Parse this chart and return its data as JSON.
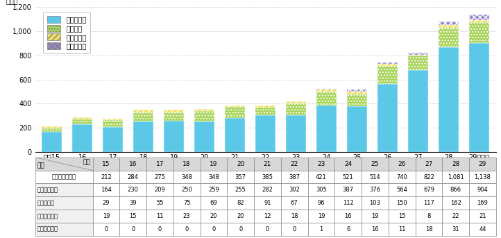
{
  "years": [
    15,
    16,
    17,
    18,
    19,
    20,
    21,
    22,
    23,
    24,
    25,
    26,
    27,
    28,
    29
  ],
  "year_labels": [
    "平成15",
    "16",
    "17",
    "18",
    "19",
    "20",
    "21",
    "22",
    "23",
    "24",
    "25",
    "26",
    "27",
    "28",
    "29（年）"
  ],
  "shintai": [
    164,
    230,
    209,
    250,
    259,
    255,
    282,
    302,
    305,
    387,
    376,
    564,
    679,
    866,
    904
  ],
  "seiteki": [
    29,
    39,
    55,
    75,
    69,
    82,
    91,
    67,
    96,
    112,
    103,
    150,
    117,
    162,
    169
  ],
  "taiman": [
    19,
    15,
    11,
    23,
    20,
    20,
    12,
    18,
    19,
    16,
    19,
    15,
    8,
    22,
    21
  ],
  "shinri": [
    0,
    0,
    0,
    0,
    0,
    0,
    0,
    0,
    1,
    6,
    16,
    11,
    18,
    31,
    44
  ],
  "total": [
    212,
    284,
    275,
    348,
    348,
    357,
    385,
    387,
    421,
    521,
    514,
    740,
    822,
    1081,
    1138
  ],
  "color_shintai": "#5bc8e8",
  "color_seiteki": "#a8d45a",
  "color_taiman": "#f0e060",
  "color_shinri": "#9988cc",
  "ylim": [
    0,
    1200
  ],
  "yticks": [
    0,
    200,
    400,
    600,
    800,
    1000,
    1200
  ],
  "ylabel": "（件）",
  "legend_labels": [
    "身体的虐待",
    "性的虐待",
    "怠慢・拒否",
    "心理的虐待"
  ],
  "table_header_years": [
    "15",
    "16",
    "17",
    "18",
    "19",
    "20",
    "21",
    "22",
    "23",
    "24",
    "25",
    "26",
    "27",
    "28",
    "29"
  ],
  "table_data_total": [
    212,
    284,
    275,
    348,
    348,
    357,
    385,
    387,
    421,
    521,
    514,
    740,
    822,
    1081,
    1138
  ],
  "table_data_shintai": [
    164,
    230,
    209,
    250,
    259,
    255,
    282,
    302,
    305,
    387,
    376,
    564,
    679,
    866,
    904
  ],
  "table_data_seiteki": [
    29,
    39,
    55,
    75,
    69,
    82,
    91,
    67,
    96,
    112,
    103,
    150,
    117,
    162,
    169
  ],
  "table_data_taiman": [
    19,
    15,
    11,
    23,
    20,
    20,
    12,
    18,
    19,
    16,
    19,
    15,
    8,
    22,
    21
  ],
  "table_data_shinri": [
    0,
    0,
    0,
    0,
    0,
    0,
    0,
    0,
    1,
    6,
    16,
    11,
    18,
    31,
    44
  ],
  "row_label_kenkyo": "検挙件数（件）",
  "row_label_shintai": "身体的虐待",
  "row_label_seiteki": "性的虐待",
  "row_label_taiman": "怠慢・拒否",
  "row_label_shinri": "心理的虐待",
  "header_kubun": "区分",
  "header_nenjiku": "年次",
  "bg_color": "#ffffff",
  "grid_color": "#cccccc",
  "bar_width": 0.65,
  "legend_hatch_seiteki": ".....",
  "legend_hatch_taiman": "////",
  "legend_hatch_shinri": "xxxx"
}
